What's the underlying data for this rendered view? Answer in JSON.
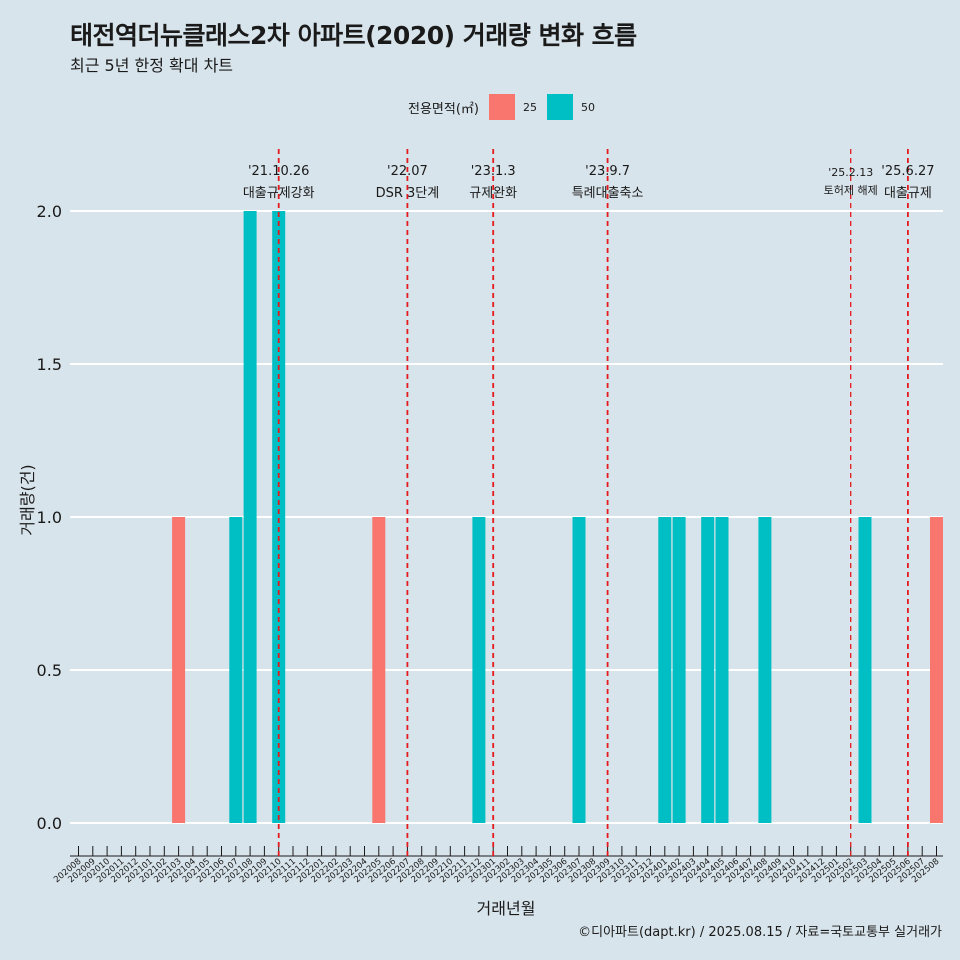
{
  "title": "태전역더뉴클래스2차 아파트(2020) 거래량 변화 흐름",
  "subtitle": "최근 5년 한정 확대 차트",
  "caption": "©디아파트(dapt.kr) / 2025.08.15 / 자료=국토교통부 실거래가",
  "legend": {
    "title": "전용면적(㎡)",
    "items": [
      {
        "label": "25",
        "color": "#F8766D"
      },
      {
        "label": "50",
        "color": "#00BFC4"
      }
    ]
  },
  "chart_data": {
    "type": "bar",
    "xlabel": "거래년월",
    "ylabel": "거래량(건)",
    "ylim": [
      0,
      2
    ],
    "yticks": [
      "0.0",
      "0.5",
      "1.0",
      "1.5",
      "2.0"
    ],
    "grid": true,
    "legend_position": "top",
    "categories": [
      "202008",
      "202009",
      "202010",
      "202011",
      "202012",
      "202101",
      "202102",
      "202103",
      "202104",
      "202105",
      "202106",
      "202107",
      "202108",
      "202109",
      "202110",
      "202111",
      "202112",
      "202201",
      "202202",
      "202203",
      "202204",
      "202205",
      "202206",
      "202207",
      "202208",
      "202209",
      "202210",
      "202211",
      "202212",
      "202301",
      "202302",
      "202303",
      "202304",
      "202305",
      "202306",
      "202307",
      "202308",
      "202309",
      "202310",
      "202311",
      "202312",
      "202401",
      "202402",
      "202403",
      "202404",
      "202405",
      "202406",
      "202407",
      "202408",
      "202409",
      "202410",
      "202411",
      "202412",
      "202501",
      "202502",
      "202503",
      "202504",
      "202505",
      "202506",
      "202507",
      "202508"
    ],
    "bars": [
      {
        "month": "202103",
        "series": "25",
        "value": 1
      },
      {
        "month": "202107",
        "series": "50",
        "value": 1
      },
      {
        "month": "202108",
        "series": "50",
        "value": 2
      },
      {
        "month": "202110",
        "series": "50",
        "value": 2
      },
      {
        "month": "202205",
        "series": "25",
        "value": 1
      },
      {
        "month": "202212",
        "series": "50",
        "value": 1
      },
      {
        "month": "202307",
        "series": "50",
        "value": 1
      },
      {
        "month": "202401",
        "series": "50",
        "value": 1
      },
      {
        "month": "202402",
        "series": "50",
        "value": 1
      },
      {
        "month": "202404",
        "series": "50",
        "value": 1
      },
      {
        "month": "202405",
        "series": "50",
        "value": 1
      },
      {
        "month": "202408",
        "series": "50",
        "value": 1
      },
      {
        "month": "202503",
        "series": "50",
        "value": 1
      },
      {
        "month": "202508",
        "series": "25",
        "value": 1
      }
    ],
    "annotations": [
      {
        "month": "202110",
        "date": "'21.10.26",
        "text": "대출규제강화",
        "small": false
      },
      {
        "month": "202207",
        "date": "'22.07",
        "text": "DSR 3단계",
        "small": false
      },
      {
        "month": "202301",
        "date": "'23.1.3",
        "text": "규제완화",
        "small": false
      },
      {
        "month": "202309",
        "date": "'23.9.7",
        "text": "특례대출축소",
        "small": false
      },
      {
        "month": "202502",
        "date": "'25.2.13",
        "text": "토허제 해제",
        "small": true
      },
      {
        "month": "202506",
        "date": "'25.6.27",
        "text": "대출규제",
        "small": false
      }
    ],
    "colors": {
      "25": "#F8766D",
      "50": "#00BFC4",
      "vline": "#e41a1c"
    }
  }
}
